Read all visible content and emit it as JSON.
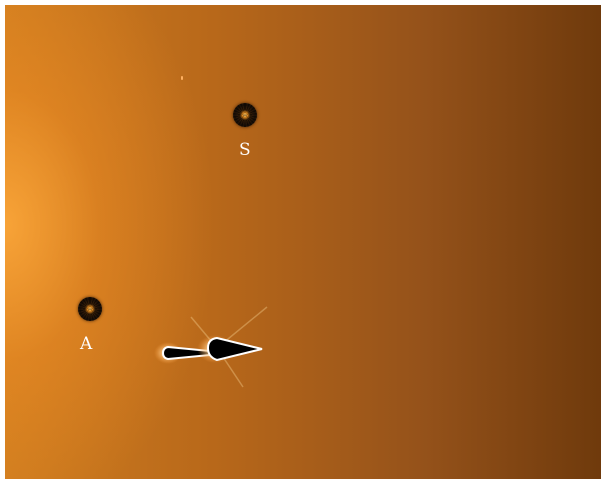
{
  "labels": {
    "s": "S",
    "a": "A"
  },
  "colors": {
    "background_bright": "#ffa033",
    "background_dark": "#6f3a0c",
    "label_text": "#ffffff",
    "saturated_core": "#000000"
  }
}
